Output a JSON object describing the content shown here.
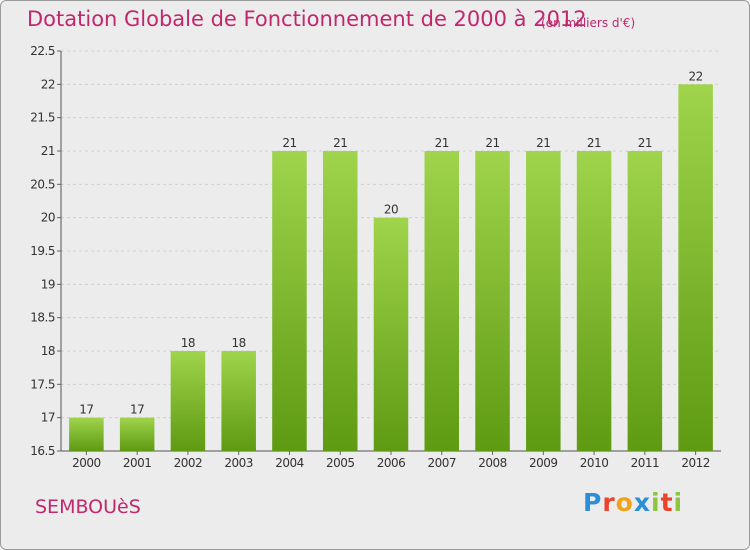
{
  "header": {
    "title": "Dotation Globale de Fonctionnement de 2000 à 2012",
    "subtitle": "(en milliers d'€)"
  },
  "footer": {
    "commune": "SEMBOUèS",
    "logo_text": "Proxiti",
    "logo_colors": [
      "#2a8fd8",
      "#e8452c",
      "#f0a21a",
      "#2a8fd8",
      "#8cc63f",
      "#e8452c",
      "#8cc63f"
    ]
  },
  "colors": {
    "text_accent": "#c0286e",
    "bar_light": "#9fd44c",
    "bar_dark": "#5e9a12",
    "grid": "#cfcfcf",
    "background": "#ececec"
  },
  "chart_data": {
    "type": "bar",
    "categories": [
      "2000",
      "2001",
      "2002",
      "2003",
      "2004",
      "2005",
      "2006",
      "2007",
      "2008",
      "2009",
      "2010",
      "2011",
      "2012"
    ],
    "values": [
      17,
      17,
      18,
      18,
      21,
      21,
      20,
      21,
      21,
      21,
      21,
      21,
      22
    ],
    "data_labels": [
      "17",
      "17",
      "18",
      "18",
      "21",
      "21",
      "20",
      "21",
      "21",
      "21",
      "21",
      "21",
      "22"
    ],
    "yticks": [
      "16.5",
      "17",
      "17.5",
      "18",
      "18.5",
      "19",
      "19.5",
      "20",
      "20.5",
      "21",
      "21.5",
      "22",
      "22.5"
    ],
    "ylim": [
      16.5,
      22.5
    ],
    "grid": true,
    "legend": "none"
  }
}
